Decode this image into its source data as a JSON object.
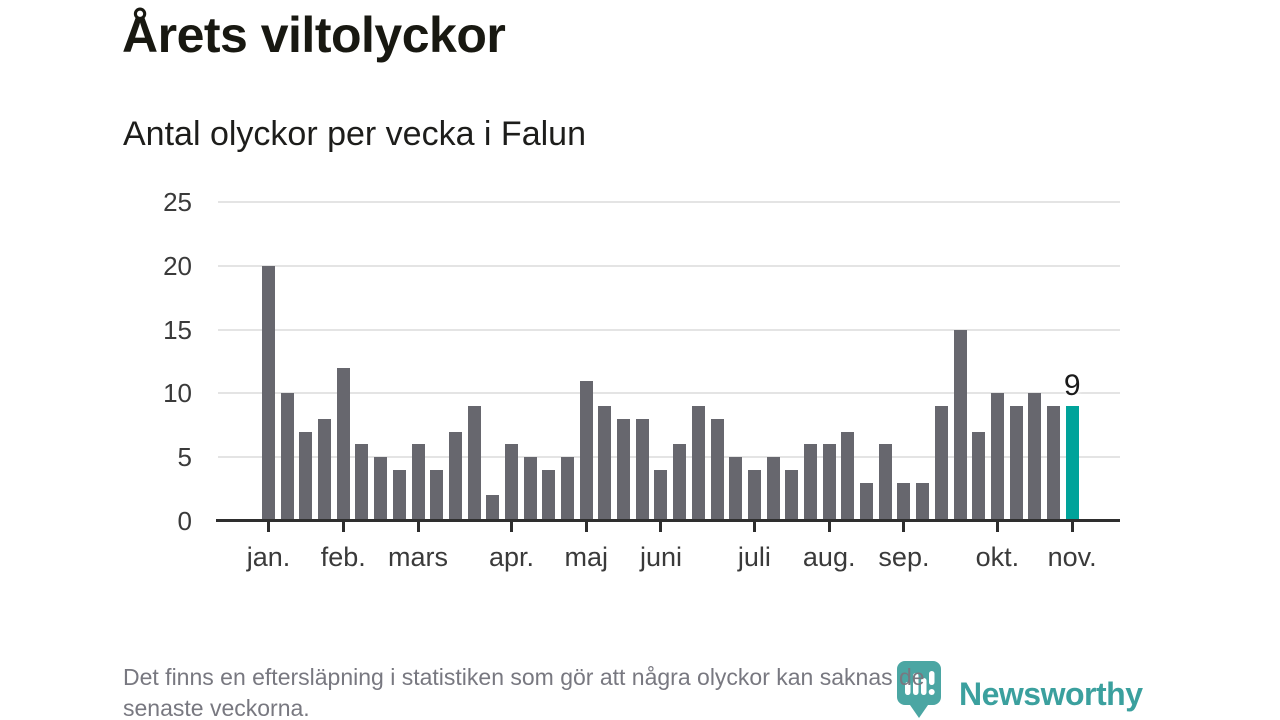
{
  "header": {
    "title": "Årets viltolyckor",
    "subtitle": "Antal olyckor per vecka i Falun"
  },
  "chart_data": {
    "type": "bar",
    "title": "Årets viltolyckor",
    "subtitle": "Antal olyckor per vecka i Falun",
    "x_unit": "vecka (44 veckor, januari–november)",
    "ylabel": "Antal olyckor",
    "ylim": [
      0,
      25
    ],
    "y_ticks": [
      0,
      5,
      10,
      15,
      20,
      25
    ],
    "grid": "horizontal",
    "legend": "none",
    "values": [
      20,
      10,
      7,
      8,
      12,
      6,
      5,
      4,
      6,
      4,
      7,
      9,
      2,
      6,
      5,
      4,
      5,
      11,
      9,
      8,
      8,
      4,
      6,
      9,
      8,
      5,
      4,
      5,
      4,
      6,
      6,
      7,
      3,
      6,
      3,
      3,
      9,
      15,
      7,
      10,
      9,
      10,
      9,
      9
    ],
    "month_ticks": [
      {
        "label": "jan.",
        "week_index": 0
      },
      {
        "label": "feb.",
        "week_index": 4
      },
      {
        "label": "mars",
        "week_index": 8
      },
      {
        "label": "apr.",
        "week_index": 13
      },
      {
        "label": "maj",
        "week_index": 17
      },
      {
        "label": "juni",
        "week_index": 21
      },
      {
        "label": "juli",
        "week_index": 26
      },
      {
        "label": "aug.",
        "week_index": 30
      },
      {
        "label": "sep.",
        "week_index": 34
      },
      {
        "label": "okt.",
        "week_index": 39
      },
      {
        "label": "nov.",
        "week_index": 43
      }
    ],
    "highlighted_bar_index": 43,
    "last_value_label": "9"
  },
  "colors": {
    "bar": "#67676e",
    "highlight": "#00a39a",
    "grid": "#e4e4e4",
    "axis": "#2e2e2e",
    "logo": "#3ba09e",
    "logo_icon": "#4ba6a3"
  },
  "footer": {
    "footnote_line1": "Det finns en eftersläpning i statistiken som gör att några olyckor kan saknas de",
    "footnote_line2": "senaste veckorna.",
    "logo_text": "Newsworthy"
  }
}
